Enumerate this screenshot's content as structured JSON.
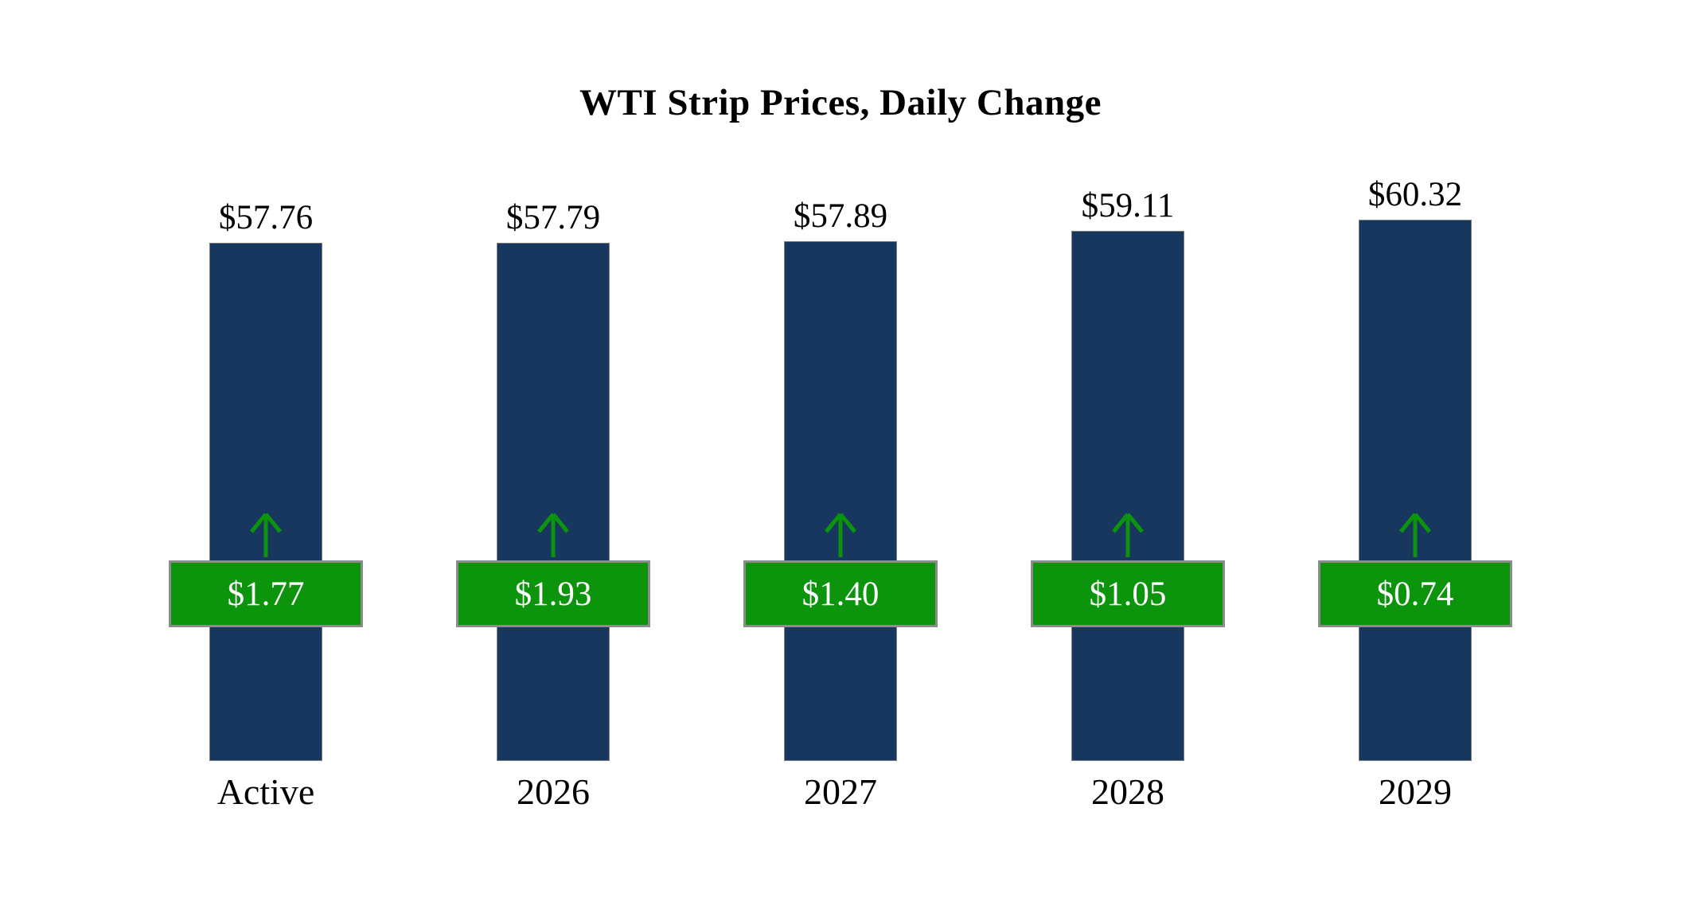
{
  "chart_data": {
    "type": "bar",
    "title": "WTI Strip Prices, Daily Change",
    "categories": [
      "Active",
      "2026",
      "2027",
      "2028",
      "2029"
    ],
    "series": [
      {
        "name": "WTI Strip Price",
        "values": [
          57.76,
          57.79,
          57.89,
          59.11,
          60.32
        ]
      },
      {
        "name": "Daily Change",
        "values": [
          1.77,
          1.93,
          1.4,
          1.05,
          0.74
        ]
      }
    ],
    "price_labels": [
      "$57.76",
      "$57.79",
      "$57.89",
      "$59.11",
      "$60.32"
    ],
    "change_labels": [
      "$1.77",
      "$1.93",
      "$1.40",
      "$1.05",
      "$0.74"
    ],
    "xlabel": "",
    "ylabel": "",
    "ylim": [
      0,
      60.32
    ],
    "grid": false,
    "legend": false,
    "colors": {
      "bar": "#17375E",
      "change_badge": "#0D940D",
      "badge_border": "#8C8C8C",
      "badge_text": "#FFFFFF",
      "label_text": "#000000"
    }
  }
}
